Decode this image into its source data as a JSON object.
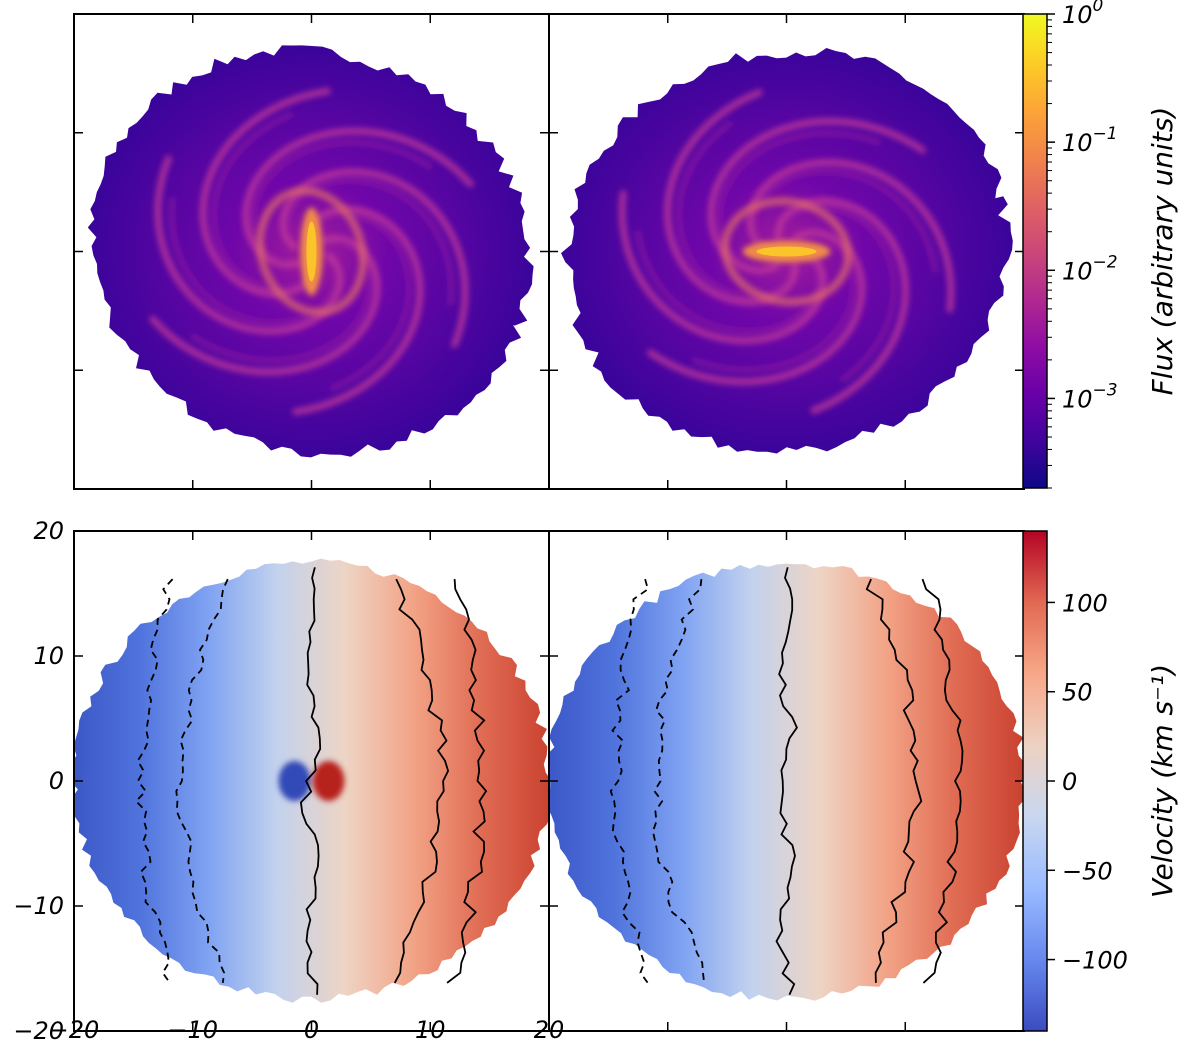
{
  "chart_data": {
    "type": "heatmap",
    "panels": [
      {
        "name": "flux-left",
        "row": "top",
        "col": "left",
        "quantity": "flux",
        "bar_angle_deg": 90
      },
      {
        "name": "flux-right",
        "row": "top",
        "col": "right",
        "quantity": "flux",
        "bar_angle_deg": 0
      },
      {
        "name": "velocity-left",
        "row": "bottom",
        "col": "left",
        "quantity": "velocity"
      },
      {
        "name": "velocity-right",
        "row": "bottom",
        "col": "right",
        "quantity": "velocity"
      }
    ],
    "axes": {
      "xlim": [
        -20,
        20
      ],
      "ylim": [
        -20,
        20
      ],
      "x_ticks": [
        -20,
        -10,
        0,
        10,
        20
      ],
      "y_ticks": [
        -20,
        -10,
        0,
        10,
        20
      ],
      "x_tick_labels": [
        "−20",
        "−10",
        "0",
        "10",
        "20"
      ],
      "y_tick_labels": [
        "−20",
        "−10",
        "0",
        "10",
        "20"
      ]
    },
    "flux_colorbar": {
      "label": "Flux (arbitrary units)",
      "scale": "log",
      "range": [
        0.0002,
        1
      ],
      "ticks": [
        0.001,
        0.01,
        0.1,
        1
      ],
      "tick_base": "10",
      "tick_exponents": [
        "−3",
        "−2",
        "−1",
        "0"
      ],
      "colormap": "plasma",
      "colors": [
        "#0d0887",
        "#41049d",
        "#6a00a8",
        "#8f0da4",
        "#b12a90",
        "#cc4778",
        "#e16462",
        "#f2844b",
        "#fca636",
        "#fcce25",
        "#f0f921"
      ]
    },
    "velocity_colorbar": {
      "label": "Velocity (km s⁻¹)",
      "range": [
        -140,
        140
      ],
      "ticks": [
        -100,
        -50,
        0,
        50,
        100
      ],
      "tick_labels": [
        "−100",
        "−50",
        "0",
        "50",
        "100"
      ],
      "colormap": "coolwarm",
      "colors": [
        "#3b4cc0",
        "#6788ee",
        "#9abbff",
        "#c9d7f0",
        "#edd1c2",
        "#f7a889",
        "#e26952",
        "#b40426"
      ]
    },
    "contour_levels": [
      -100,
      -50,
      0,
      50,
      100
    ],
    "disk_radius": 20
  }
}
